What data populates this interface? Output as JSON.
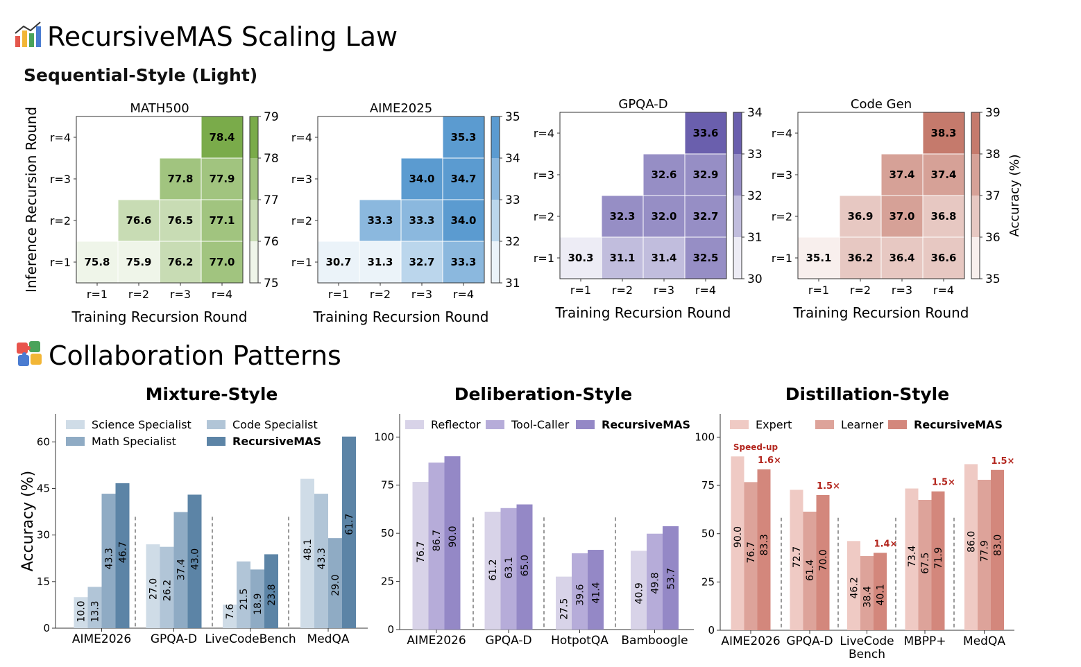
{
  "sections": {
    "scaling": {
      "icon": "bar-chart-emoji-icon",
      "title": "RecursiveMAS Scaling Law"
    },
    "sequential": {
      "subtitle": "Sequential-Style (Light)"
    },
    "collab": {
      "icon": "puzzle-emoji-icon",
      "title": "Collaboration Patterns"
    }
  },
  "colors": {
    "math500": [
      "#ffffff",
      "#7aab4a"
    ],
    "aime2025": [
      "#ffffff",
      "#5b9bd0"
    ],
    "gpqa": [
      "#ffffff",
      "#6a5fad"
    ],
    "codegen": [
      "#ffffff",
      "#c57a6c"
    ],
    "mixture": [
      "#cfdce7",
      "#b1c5d7",
      "#8fabc4",
      "#5c84a6"
    ],
    "deliberation": [
      "#d8d3e8",
      "#b6acd9",
      "#9488c6"
    ],
    "distillation": [
      "#efcac4",
      "#dda39a",
      "#d3877c"
    ],
    "speedup": "#b3261e"
  },
  "chart_data": [
    {
      "type": "heatmap",
      "title": "MATH500",
      "xlabel": "Training Recursion Round",
      "ylabel": "Inference Recursion Round",
      "x_categories": [
        "r=1",
        "r=2",
        "r=3",
        "r=4"
      ],
      "y_categories": [
        "r=1",
        "r=2",
        "r=3",
        "r=4"
      ],
      "values": [
        [
          75.8,
          75.9,
          76.2,
          77.0
        ],
        [
          null,
          76.6,
          76.5,
          77.1
        ],
        [
          null,
          null,
          77.8,
          77.9
        ],
        [
          null,
          null,
          null,
          78.4
        ]
      ],
      "colorbar": {
        "min": 75,
        "max": 79,
        "ticks": [
          "75",
          "76",
          "77",
          "78",
          "79"
        ],
        "label": ""
      }
    },
    {
      "type": "heatmap",
      "title": "AIME2025",
      "xlabel": "Training Recursion Round",
      "ylabel": "",
      "x_categories": [
        "r=1",
        "r=2",
        "r=3",
        "r=4"
      ],
      "y_categories": [
        "r=1",
        "r=2",
        "r=3",
        "r=4"
      ],
      "values": [
        [
          30.7,
          31.3,
          32.7,
          33.3
        ],
        [
          null,
          33.3,
          33.3,
          34.0
        ],
        [
          null,
          null,
          34.0,
          34.7
        ],
        [
          null,
          null,
          null,
          35.3
        ]
      ],
      "colorbar": {
        "min": 31,
        "max": 35,
        "ticks": [
          "31",
          "32",
          "33",
          "34",
          "35"
        ],
        "label": ""
      }
    },
    {
      "type": "heatmap",
      "title": "GPQA-D",
      "xlabel": "Training Recursion Round",
      "ylabel": "",
      "x_categories": [
        "r=1",
        "r=2",
        "r=3",
        "r=4"
      ],
      "y_categories": [
        "r=1",
        "r=2",
        "r=3",
        "r=4"
      ],
      "values": [
        [
          30.3,
          31.1,
          31.4,
          32.5
        ],
        [
          null,
          32.3,
          32.0,
          32.7
        ],
        [
          null,
          null,
          32.6,
          32.9
        ],
        [
          null,
          null,
          null,
          33.6
        ]
      ],
      "colorbar": {
        "min": 30,
        "max": 34,
        "ticks": [
          "30",
          "31",
          "32",
          "33",
          "34"
        ],
        "label": ""
      }
    },
    {
      "type": "heatmap",
      "title": "Code Gen",
      "xlabel": "Training Recursion Round",
      "ylabel": "",
      "x_categories": [
        "r=1",
        "r=2",
        "r=3",
        "r=4"
      ],
      "y_categories": [
        "r=1",
        "r=2",
        "r=3",
        "r=4"
      ],
      "values": [
        [
          35.1,
          36.2,
          36.4,
          36.6
        ],
        [
          null,
          36.9,
          37.0,
          36.8
        ],
        [
          null,
          null,
          37.4,
          37.4
        ],
        [
          null,
          null,
          null,
          38.3
        ]
      ],
      "colorbar": {
        "min": 35,
        "max": 39,
        "ticks": [
          "35",
          "36",
          "37",
          "38",
          "39"
        ],
        "label": "Accuracy (%)"
      }
    },
    {
      "type": "bar",
      "title": "Mixture-Style",
      "ylabel": "Accuracy (%)",
      "ylim": [
        0,
        69
      ],
      "yticks": [
        0,
        15,
        30,
        45,
        60
      ],
      "categories": [
        "AIME2026",
        "GPQA-D",
        "LiveCodeBench",
        "MedQA"
      ],
      "series": [
        {
          "name": "Science Specialist",
          "values": [
            10.0,
            27.0,
            7.6,
            48.1
          ]
        },
        {
          "name": "Code Specialist",
          "values": [
            13.3,
            26.2,
            21.5,
            43.3
          ]
        },
        {
          "name": "Math Specialist",
          "values": [
            43.3,
            37.4,
            18.9,
            29.0
          ]
        },
        {
          "name": "RecursiveMAS",
          "values": [
            46.7,
            43.0,
            23.8,
            61.7
          ]
        }
      ],
      "value_labels": [
        [
          "10.0",
          "13.3",
          "43.3",
          "46.7"
        ],
        [
          "27.0",
          "26.2",
          "37.4",
          "43.0"
        ],
        [
          "7.6",
          "21.5",
          "18.9",
          "23.8"
        ],
        [
          "48.1",
          "43.3",
          "29.0",
          "61.7"
        ]
      ],
      "legend": "top"
    },
    {
      "type": "bar",
      "title": "Deliberation-Style",
      "ylabel": "",
      "ylim": [
        0,
        112
      ],
      "yticks": [
        0,
        25,
        50,
        75,
        100
      ],
      "categories": [
        "AIME2026",
        "GPQA-D",
        "HotpotQA",
        "Bamboogle"
      ],
      "series": [
        {
          "name": "Reflector",
          "values": [
            76.7,
            61.2,
            27.5,
            40.9
          ]
        },
        {
          "name": "Tool-Caller",
          "values": [
            86.7,
            63.1,
            39.6,
            49.8
          ]
        },
        {
          "name": "RecursiveMAS",
          "values": [
            90.0,
            65.0,
            41.4,
            53.7
          ]
        }
      ],
      "value_labels": [
        [
          "76.7",
          "86.7",
          "90.0"
        ],
        [
          "61.2",
          "63.1",
          "65.0"
        ],
        [
          "27.5",
          "39.6",
          "41.4"
        ],
        [
          "40.9",
          "49.8",
          "53.7"
        ]
      ],
      "legend": "top"
    },
    {
      "type": "bar",
      "title": "Distillation-Style",
      "ylabel": "",
      "ylim": [
        0,
        112
      ],
      "yticks": [
        0,
        25,
        50,
        75,
        100
      ],
      "categories": [
        "AIME2026",
        "GPQA-D",
        "LiveCode\nBench",
        "MBPP+",
        "MedQA"
      ],
      "series": [
        {
          "name": "Expert",
          "values": [
            90.0,
            72.7,
            46.2,
            73.4,
            86.0
          ]
        },
        {
          "name": "Learner",
          "values": [
            76.7,
            61.4,
            38.4,
            67.5,
            77.9
          ]
        },
        {
          "name": "RecursiveMAS",
          "values": [
            83.3,
            70.0,
            40.1,
            71.9,
            83.0
          ]
        }
      ],
      "value_labels": [
        [
          "90.0",
          "76.7",
          "83.3"
        ],
        [
          "72.7",
          "61.4",
          "70.0"
        ],
        [
          "46.2",
          "38.4",
          "40.1"
        ],
        [
          "73.4",
          "67.5",
          "71.9"
        ],
        [
          "86.0",
          "77.9",
          "83.0"
        ]
      ],
      "annotations": {
        "speedup_title": "Speed-up",
        "speedups": [
          "1.6×",
          "1.5×",
          "1.4×",
          "1.5×",
          "1.5×"
        ]
      },
      "legend": "top"
    }
  ]
}
